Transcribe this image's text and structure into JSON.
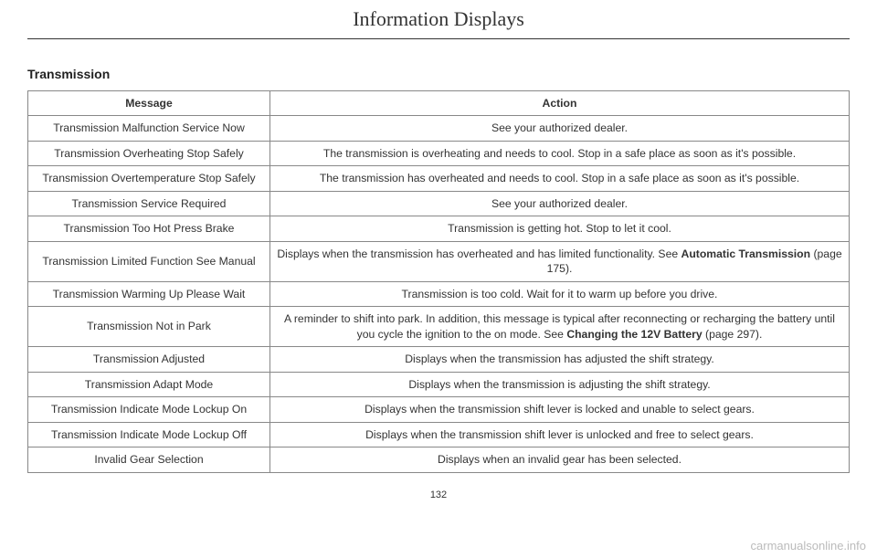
{
  "chapter_title": "Information Displays",
  "section_title": "Transmission",
  "page_number": "132",
  "watermark": "carmanualsonline.info",
  "table": {
    "headers": {
      "message": "Message",
      "action": "Action"
    },
    "rows": [
      {
        "message": "Transmission Malfunction Service Now",
        "action": "See your authorized dealer."
      },
      {
        "message": "Transmission Overheating Stop Safely",
        "action": "The transmission is overheating and needs to cool. Stop in a safe place as soon as it's possible."
      },
      {
        "message": "Transmission Overtemperature Stop Safely",
        "action": "The transmission has overheated and needs to cool. Stop in a safe place as soon as it's possible."
      },
      {
        "message": "Transmission Service Required",
        "action": "See your authorized dealer."
      },
      {
        "message": "Transmission Too Hot Press Brake",
        "action": "Transmission is getting hot. Stop to let it cool."
      },
      {
        "message": "Transmission Limited Function See Manual",
        "action_pre": "Displays when the transmission has overheated and has limited functionality.  See ",
        "action_bold": "Automatic Transmission",
        "action_post": " (page 175)."
      },
      {
        "message": "Transmission Warming Up Please Wait",
        "action": "Transmission is too cold. Wait for it to warm up before you drive."
      },
      {
        "message": "Transmission Not in Park",
        "action_pre": "A reminder to shift into park. In addition, this message is typical after reconnecting or recharging the battery until you cycle the ignition to the on mode.  See ",
        "action_bold": "Changing the 12V Battery",
        "action_post": " (page 297)."
      },
      {
        "message": "Transmission Adjusted",
        "action": "Displays when the transmission has adjusted the shift strategy."
      },
      {
        "message": "Transmission Adapt Mode",
        "action": "Displays when the transmission is adjusting the shift strategy."
      },
      {
        "message": "Transmission Indicate Mode Lockup On",
        "action": "Displays when the transmission shift lever is locked and unable to select gears."
      },
      {
        "message": "Transmission Indicate Mode Lockup Off",
        "action": "Displays when the transmission shift lever is unlocked and free to select gears."
      },
      {
        "message": "Invalid Gear Selection",
        "action": "Displays when an invalid gear has been selected."
      }
    ]
  }
}
